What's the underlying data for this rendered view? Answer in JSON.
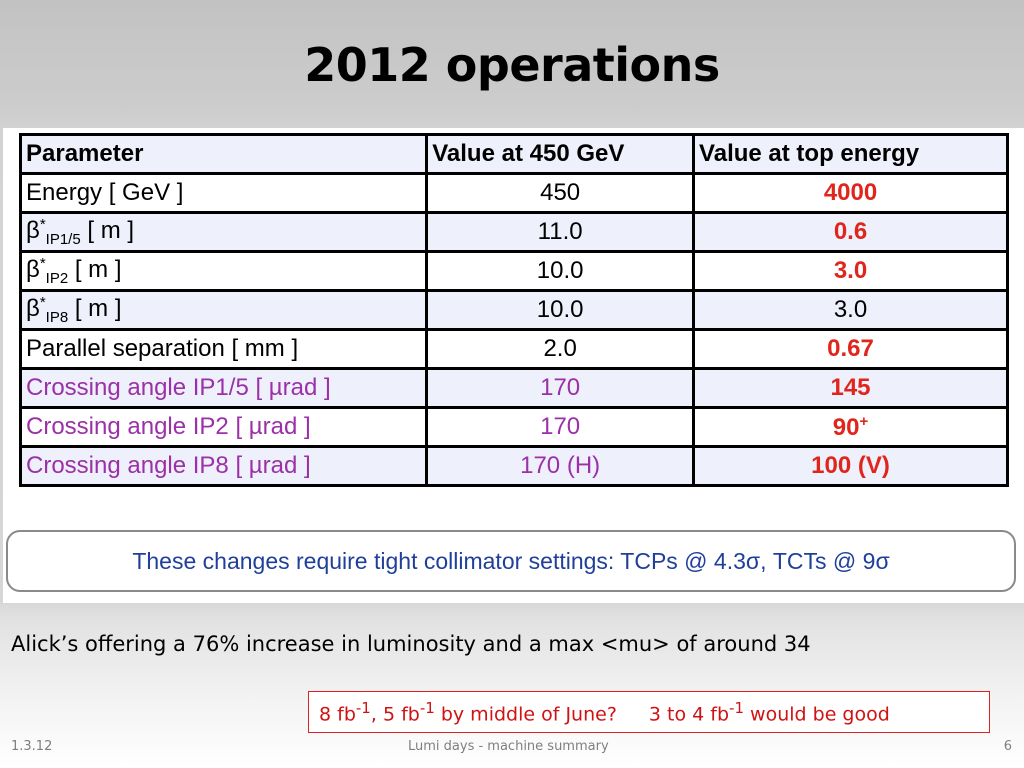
{
  "slide": {
    "title": "2012 operations",
    "table": {
      "headers": [
        "Parameter",
        "Value at 450 GeV",
        "Value at top energy"
      ],
      "rows": [
        {
          "param": "Energy [ GeV ]",
          "v450": "450",
          "vtop": "4000"
        },
        {
          "param_base": "β",
          "param_sup": "*",
          "param_sub": "IP1/5",
          "param_rest": " [ m ]",
          "v450": "11.0",
          "vtop": "0.6"
        },
        {
          "param_base": "β",
          "param_sup": "*",
          "param_sub": "IP2",
          "param_rest": " [ m ]",
          "v450": "10.0",
          "vtop": "3.0"
        },
        {
          "param_base": "β",
          "param_sup": "*",
          "param_sub": "IP8",
          "param_rest": " [ m ]",
          "v450": "10.0",
          "vtop": "3.0"
        },
        {
          "param": "Parallel separation [ mm ]",
          "v450": "2.0",
          "vtop": "0.67"
        },
        {
          "param": "Crossing angle IP1/5 [ µrad ]",
          "v450": "170",
          "vtop": "145"
        },
        {
          "param": "Crossing angle IP2 [ µrad ]",
          "v450": "170",
          "vtop_base": "90",
          "vtop_sup": "+"
        },
        {
          "param": "Crossing angle IP8 [ µrad ]",
          "v450": "170 (H)",
          "vtop": "100 (V)"
        }
      ]
    },
    "note": "These changes require tight collimator settings: TCPs @ 4.3σ,  TCTs @ 9σ",
    "statement": "Alick’s offering a 76% increase in luminosity and a max <mu> of around 34",
    "redbox": {
      "a_pre": "8 fb",
      "a_sup": "-1",
      "a_mid": ", 5 fb",
      "a_sup2": "-1",
      "a_post": " by middle of June?",
      "b_pre": "3 to 4 fb",
      "b_sup": "-1",
      "b_post": " would be good"
    },
    "footer": {
      "date": "1.3.12",
      "center": "Lumi days - machine summary",
      "page": "6"
    },
    "colors": {
      "highlight_red": "#e0261c",
      "crossing_purple": "#9b30a8",
      "note_blue": "#1f3f9b"
    }
  }
}
